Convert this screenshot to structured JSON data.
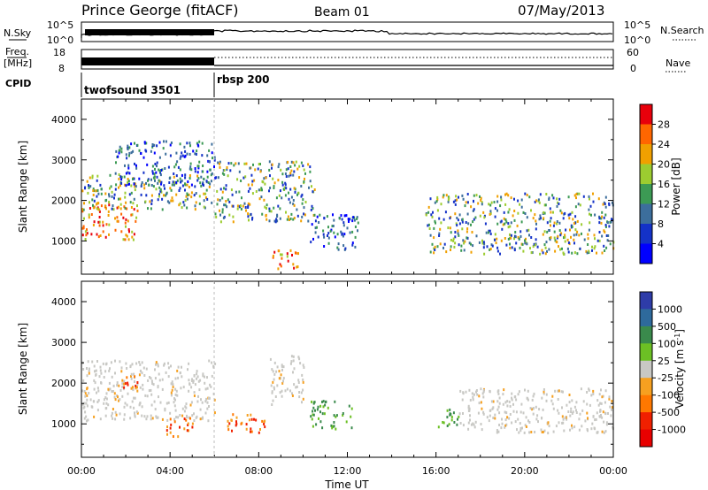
{
  "header": {
    "station": "Prince George (fitACF)",
    "beam": "Beam 01",
    "date": "07/May/2013"
  },
  "strips": {
    "sky_label": "N.Sky",
    "sky_ticks": [
      "10^5",
      "10^0"
    ],
    "search_label": "N.Search",
    "freq_label_1": "Freq.",
    "freq_label_2": "[MHz]",
    "freq_ticks": [
      "18",
      "8"
    ],
    "nave_label": "Nave",
    "nave_ticks": [
      "60",
      "0"
    ],
    "cpid_label": "CPID",
    "cpid_modes": [
      {
        "name": "twofsound 3501",
        "start_hour": 0
      },
      {
        "name": "rbsp 200",
        "start_hour": 6
      }
    ]
  },
  "chart_data": [
    {
      "type": "heatmap",
      "title": "Power",
      "ylabel": "Slant Range [km]",
      "xlabel": "",
      "x_range_hours": [
        0,
        24
      ],
      "ylim": [
        180,
        4500
      ],
      "y_ticks": [
        1000,
        2000,
        3000,
        4000
      ],
      "colorbar": {
        "label": "Power [dB]",
        "ticks": [
          "28",
          "24",
          "20",
          "16",
          "12",
          "8",
          "4"
        ],
        "colors": [
          "#e8000b",
          "#ff6600",
          "#f0a000",
          "#9ccc30",
          "#3c9a54",
          "#3c6e9c",
          "#1432c8",
          "#0000ff"
        ]
      },
      "echo_regions": [
        {
          "t0": 0.0,
          "t1": 2.5,
          "r0": 1050,
          "r1": 2000,
          "level": "high"
        },
        {
          "t0": 0.0,
          "t1": 6.0,
          "r0": 1800,
          "r1": 2700,
          "level": "mid"
        },
        {
          "t0": 1.5,
          "t1": 6.0,
          "r0": 2400,
          "r1": 3500,
          "level": "low"
        },
        {
          "t0": 6.0,
          "t1": 10.5,
          "r0": 1500,
          "r1": 3000,
          "level": "mid"
        },
        {
          "t0": 8.5,
          "t1": 9.8,
          "r0": 300,
          "r1": 800,
          "level": "high"
        },
        {
          "t0": 10.3,
          "t1": 12.5,
          "r0": 800,
          "r1": 1700,
          "level": "low"
        },
        {
          "t0": 15.5,
          "t1": 24.0,
          "r0": 700,
          "r1": 2200,
          "level": "mid"
        }
      ]
    },
    {
      "type": "heatmap",
      "title": "Velocity",
      "ylabel": "Slant Range [km]",
      "xlabel": "Time UT",
      "x_range_hours": [
        0,
        24
      ],
      "ylim": [
        180,
        4500
      ],
      "y_ticks": [
        1000,
        2000,
        3000,
        4000
      ],
      "x_ticks": [
        "00:00",
        "04:00",
        "08:00",
        "12:00",
        "16:00",
        "20:00",
        "00:00"
      ],
      "colorbar": {
        "label": "Velocity [m s^-1]",
        "ticks": [
          "1000",
          "500",
          "100",
          "25",
          "-25",
          "-100",
          "-500",
          "-1000"
        ],
        "colors": [
          "#2e3ca8",
          "#2e6a9c",
          "#3a8a4c",
          "#6cc024",
          "#c8c8c4",
          "#f6a020",
          "#ff7800",
          "#f02000",
          "#e80000"
        ]
      },
      "echo_regions": [
        {
          "t0": 0.0,
          "t1": 6.0,
          "r0": 1100,
          "r1": 2600,
          "level": "ground_scatter"
        },
        {
          "t0": 1.8,
          "t1": 2.6,
          "r0": 1800,
          "r1": 2300,
          "level": "negative"
        },
        {
          "t0": 3.8,
          "t1": 5.0,
          "r0": 700,
          "r1": 1200,
          "level": "negative"
        },
        {
          "t0": 6.5,
          "t1": 8.3,
          "r0": 800,
          "r1": 1300,
          "level": "negative"
        },
        {
          "t0": 8.5,
          "t1": 10.0,
          "r0": 1500,
          "r1": 2700,
          "level": "ground_scatter"
        },
        {
          "t0": 10.3,
          "t1": 12.2,
          "r0": 900,
          "r1": 1600,
          "level": "positive"
        },
        {
          "t0": 16.0,
          "t1": 17.0,
          "r0": 900,
          "r1": 1400,
          "level": "positive"
        },
        {
          "t0": 17.0,
          "t1": 24.0,
          "r0": 800,
          "r1": 1900,
          "level": "ground_scatter"
        }
      ]
    }
  ]
}
